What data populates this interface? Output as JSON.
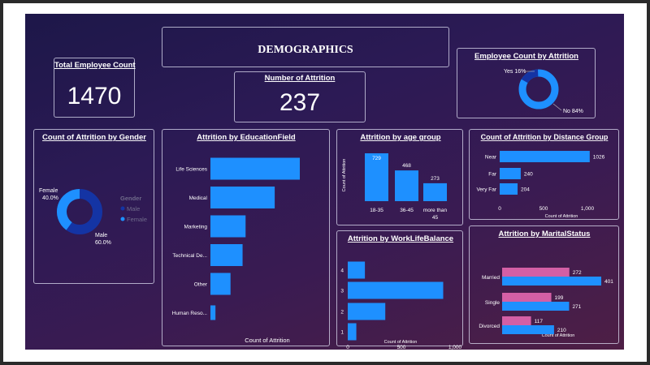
{
  "dashboard": {
    "title": "DEMOGRAPHICS",
    "total_employee": {
      "label": "Total Employee Count",
      "value": "1470"
    },
    "attrition_count": {
      "label": "Number of Attrition",
      "value": "237"
    },
    "colors": {
      "bar": "#1e90ff",
      "male": "#1434a4",
      "female": "#1e90ff",
      "married_pink": "#d45fa5",
      "bg": "#26184f"
    }
  },
  "chart_data": [
    {
      "id": "emp_attrition",
      "type": "pie",
      "donut": true,
      "title": "Employee Count by Attrition",
      "slices": [
        {
          "label": "Yes",
          "value": 16,
          "display": "Yes 16%",
          "color": "#1434a4"
        },
        {
          "label": "No",
          "value": 84,
          "display": "No 84%",
          "color": "#1e90ff"
        }
      ]
    },
    {
      "id": "gender",
      "type": "pie",
      "donut": true,
      "title": "Count of Attrition by Gender",
      "slices": [
        {
          "label": "Female",
          "value": 40,
          "display": "Female",
          "pct": "40.0%",
          "color": "#1e90ff"
        },
        {
          "label": "Male",
          "value": 60,
          "display": "Male",
          "pct": "60.0%",
          "color": "#1434a4"
        }
      ],
      "legend": {
        "title": "Gender",
        "items": [
          "Male",
          "Female"
        ]
      }
    },
    {
      "id": "education",
      "type": "bar",
      "orientation": "horizontal",
      "title": "Attrition by EducationField",
      "categories": [
        "Life Sciences",
        "Medical",
        "Marketing",
        "Technical De...",
        "Other",
        "Human Reso..."
      ],
      "values": [
        89,
        64,
        35,
        32,
        20,
        5
      ],
      "xlabel": "Count of Attrition"
    },
    {
      "id": "age",
      "type": "bar",
      "title": "Attrition by age group",
      "categories": [
        "18-35",
        "36-45",
        "more than 45"
      ],
      "values": [
        729,
        468,
        273
      ],
      "ylabel": "Count of Attrition"
    },
    {
      "id": "distance",
      "type": "bar",
      "orientation": "horizontal",
      "title": "Count of Attrition by Distance Group",
      "categories": [
        "Near",
        "Far",
        "Very Far"
      ],
      "values": [
        1026,
        240,
        204
      ],
      "xlim": [
        0,
        1000
      ],
      "xticks": [
        "0",
        "500",
        "1,000"
      ],
      "xlabel": "Count of Attrition"
    },
    {
      "id": "worklife",
      "type": "bar",
      "orientation": "horizontal",
      "title": "Attrition by WorkLifeBalance",
      "categories": [
        "4",
        "3",
        "2",
        "1"
      ],
      "values": [
        160,
        890,
        350,
        80
      ],
      "xlim": [
        0,
        1000
      ],
      "xticks": [
        "0",
        "500",
        "1,000"
      ],
      "xlabel": "Count of Attrition"
    },
    {
      "id": "marital",
      "type": "bar",
      "orientation": "horizontal",
      "title": "Attrition by MaritalStatus",
      "categories": [
        "Married",
        "Single",
        "Divorced"
      ],
      "series": [
        {
          "values": [
            272,
            199,
            117
          ],
          "color": "#d45fa5"
        },
        {
          "values": [
            401,
            271,
            210
          ],
          "color": "#1e90ff"
        }
      ],
      "xlabel": "Count of Attrition"
    }
  ]
}
